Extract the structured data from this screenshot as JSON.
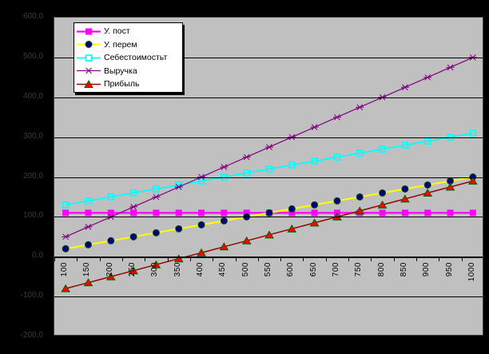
{
  "chart_data": {
    "type": "line",
    "x": [
      100,
      150,
      200,
      250,
      300,
      350,
      400,
      450,
      500,
      550,
      600,
      650,
      700,
      750,
      800,
      850,
      900,
      950,
      1000
    ],
    "x_tick_labels": [
      "100",
      "150",
      "200",
      "250",
      "300",
      "350",
      "400",
      "450",
      "500",
      "550",
      "600",
      "650",
      "700",
      "750",
      "800",
      "850",
      "900",
      "950",
      "1000"
    ],
    "series": [
      {
        "name": "У. пост",
        "line_color": "#FF00FF",
        "line_width": 2.2,
        "marker": "square",
        "marker_color": "#FF00FF",
        "marker_border": "#FF00FF",
        "values": [
          110,
          110,
          110,
          110,
          110,
          110,
          110,
          110,
          110,
          110,
          110,
          110,
          110,
          110,
          110,
          110,
          110,
          110,
          110
        ]
      },
      {
        "name": "У. перем",
        "line_color": "#FFFF00",
        "line_width": 2,
        "marker": "circle",
        "marker_color": "#000080",
        "marker_border": "#005000",
        "values": [
          20,
          30,
          40,
          50,
          60,
          70,
          80,
          90,
          100,
          110,
          120,
          130,
          140,
          150,
          160,
          170,
          180,
          190,
          200
        ]
      },
      {
        "name": "Себестоимостьт",
        "line_color": "#00FFFF",
        "line_width": 1.8,
        "marker": "open-square",
        "marker_color": "#00FFFF",
        "marker_border": "#00FFFF",
        "values": [
          130,
          140,
          150,
          160,
          170,
          180,
          190,
          200,
          210,
          220,
          230,
          240,
          250,
          260,
          270,
          280,
          290,
          300,
          310
        ]
      },
      {
        "name": "Выручка",
        "line_color": "#800080",
        "line_width": 1.2,
        "marker": "star",
        "marker_color": "#800080",
        "marker_border": "#800080",
        "values": [
          50,
          75,
          100,
          125,
          150,
          175,
          200,
          225,
          250,
          275,
          300,
          325,
          350,
          375,
          400,
          425,
          450,
          475,
          500
        ]
      },
      {
        "name": "Прибыль",
        "line_color": "#990000",
        "line_width": 1.5,
        "marker": "triangle",
        "marker_color": "#FF0000",
        "marker_border": "#006400",
        "values": [
          -80,
          -65,
          -50,
          -35,
          -20,
          -5,
          10,
          25,
          40,
          55,
          70,
          85,
          100,
          115,
          130,
          145,
          160,
          175,
          190
        ]
      }
    ],
    "ylim": [
      -200,
      600
    ],
    "ytick_step": 100,
    "y_tick_labels": [
      "600,0",
      "500,0",
      "400,0",
      "300,0",
      "200,0",
      "100,0",
      "0,0",
      "-100,0",
      "-200,0"
    ],
    "grid": true,
    "legend_position": "top-left",
    "plot_bg": "#C0C0C0",
    "outer_bg": "#000000",
    "gridline_color": "#000000",
    "x_label_color": "#000000",
    "y_label_color": "#3a3a46"
  }
}
